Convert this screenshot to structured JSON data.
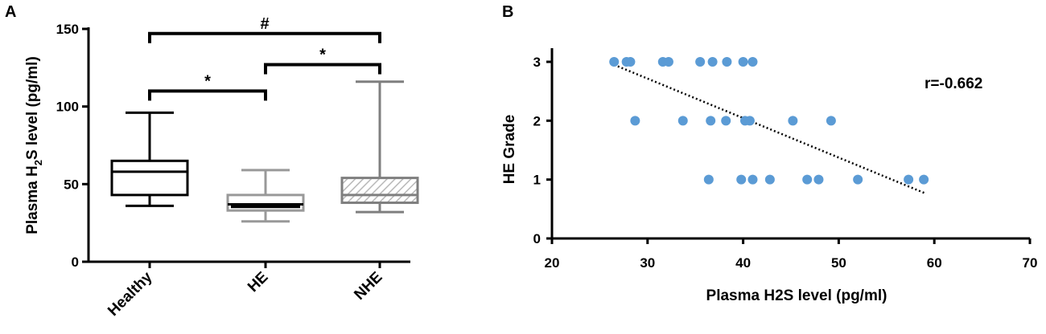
{
  "panels": {
    "a": "A",
    "b": "B"
  },
  "chart_data": [
    {
      "type": "box",
      "ylabel": "Plasma H2S level (pg/ml)",
      "ylabel_parts": [
        "Plasma H",
        "2",
        "S level (pg/ml)"
      ],
      "ylim": [
        0,
        150
      ],
      "yticks": [
        0,
        50,
        100,
        150
      ],
      "categories": [
        "Healthy",
        "HE",
        "NHE"
      ],
      "boxes": [
        {
          "name": "Healthy",
          "min": 36,
          "q1": 43,
          "median": 58,
          "q3": 65,
          "max": 96,
          "fill": "white",
          "color": "#000000"
        },
        {
          "name": "HE",
          "min": 26,
          "q1": 33,
          "median": 37,
          "q3": 43,
          "max": 59,
          "fill": "solid",
          "color": "#999999"
        },
        {
          "name": "NHE",
          "min": 32,
          "q1": 38,
          "median": 43,
          "q3": 54,
          "max": 116,
          "fill": "hatched",
          "color": "#7f7f7f"
        }
      ],
      "comparisons": [
        {
          "from": "Healthy",
          "to": "HE",
          "label": "*",
          "y": 110
        },
        {
          "from": "HE",
          "to": "NHE",
          "label": "*",
          "y": 127
        },
        {
          "from": "Healthy",
          "to": "NHE",
          "label": "#",
          "y": 147
        }
      ]
    },
    {
      "type": "scatter",
      "xlabel": "Plasma H2S level (pg/ml)",
      "ylabel": "HE Grade",
      "xlim": [
        20,
        70
      ],
      "ylim": [
        0,
        3
      ],
      "xticks": [
        20,
        30,
        40,
        50,
        60,
        70
      ],
      "yticks": [
        0,
        1,
        2,
        3
      ],
      "color": "#5b9bd5",
      "points": [
        [
          26.5,
          3
        ],
        [
          27.8,
          3
        ],
        [
          28.2,
          3
        ],
        [
          31.6,
          3
        ],
        [
          32.2,
          3
        ],
        [
          35.5,
          3
        ],
        [
          36.8,
          3
        ],
        [
          38.3,
          3
        ],
        [
          40.0,
          3
        ],
        [
          41.0,
          3
        ],
        [
          28.7,
          2
        ],
        [
          33.7,
          2
        ],
        [
          36.6,
          2
        ],
        [
          38.2,
          2
        ],
        [
          40.2,
          2
        ],
        [
          40.7,
          2
        ],
        [
          45.2,
          2
        ],
        [
          49.2,
          2
        ],
        [
          36.4,
          1
        ],
        [
          39.8,
          1
        ],
        [
          41.0,
          1
        ],
        [
          42.8,
          1
        ],
        [
          46.7,
          1
        ],
        [
          47.9,
          1
        ],
        [
          52.0,
          1
        ],
        [
          57.3,
          1
        ],
        [
          58.9,
          1
        ]
      ],
      "trendline": {
        "x": [
          26.5,
          59.0
        ],
        "y": [
          2.95,
          0.77
        ]
      },
      "annotation": "r=-0.662"
    }
  ]
}
